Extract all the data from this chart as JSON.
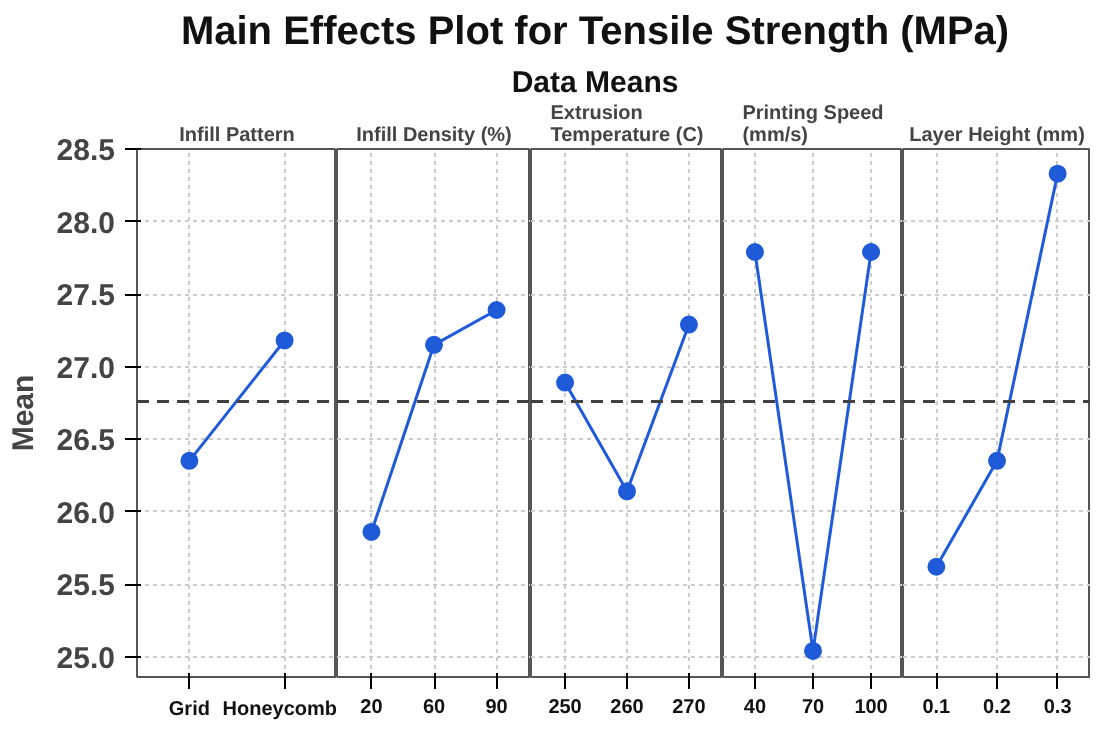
{
  "chart_data": [
    {
      "type": "line",
      "title": "Infill Pattern",
      "ylabel": "Mean",
      "annotations": [
        "Main Effects Plot for Tensile Strength (MPa)",
        "Data Means"
      ],
      "categories": [
        "Grid",
        "Honeycomb"
      ],
      "series": [
        {
          "color": "#1f5ad8",
          "values": [
            26.35,
            27.18
          ]
        }
      ],
      "ylim": [
        24.86,
        28.5
      ],
      "yticks": [
        {
          "value": 25,
          "label": "25.0"
        },
        25.5,
        {
          "value": 26,
          "label": "26.0"
        },
        26.5,
        {
          "value": 27,
          "label": "27.0"
        },
        27.5,
        {
          "value": 28,
          "label": "28.0"
        },
        28.5
      ],
      "ref_lines": [
        {
          "axis": "y",
          "value": 26.76,
          "line_style": "dashed",
          "color": "#404040"
        }
      ],
      "marker": "circle",
      "grid": true
    },
    {
      "type": "line",
      "title": "Infill Density (%)",
      "categories": [
        "20",
        "60",
        "90"
      ],
      "series": [
        {
          "color": "#1f5ad8",
          "values": [
            25.86,
            27.15,
            27.39
          ]
        }
      ],
      "ylim": [
        24.86,
        28.5
      ],
      "yticks": [
        25,
        25.5,
        26,
        26.5,
        27,
        27.5,
        28,
        28.5
      ],
      "ref_lines": [
        {
          "axis": "y",
          "value": 26.76,
          "line_style": "dashed",
          "color": "#404040"
        }
      ],
      "marker": "circle",
      "grid": true,
      "tick_labels": "x"
    },
    {
      "type": "line",
      "title": "Extrusion\nTemperature (C)",
      "categories": [
        "250",
        "260",
        "270"
      ],
      "series": [
        {
          "color": "#1f5ad8",
          "values": [
            26.89,
            26.14,
            27.29
          ]
        }
      ],
      "ylim": [
        24.86,
        28.5
      ],
      "yticks": [
        25,
        25.5,
        26,
        26.5,
        27,
        27.5,
        28,
        28.5
      ],
      "ref_lines": [
        {
          "axis": "y",
          "value": 26.76,
          "line_style": "dashed",
          "color": "#404040"
        }
      ],
      "marker": "circle",
      "grid": true,
      "tick_labels": "x"
    },
    {
      "type": "line",
      "title": "Printing Speed\n(mm/s)",
      "categories": [
        "40",
        "70",
        "100"
      ],
      "series": [
        {
          "color": "#1f5ad8",
          "values": [
            27.79,
            25.04,
            27.79
          ]
        }
      ],
      "ylim": [
        24.86,
        28.5
      ],
      "yticks": [
        25,
        25.5,
        26,
        26.5,
        27,
        27.5,
        28,
        28.5
      ],
      "ref_lines": [
        {
          "axis": "y",
          "value": 26.76,
          "line_style": "dashed",
          "color": "#404040"
        }
      ],
      "marker": "circle",
      "grid": true,
      "tick_labels": "x"
    },
    {
      "type": "line",
      "title": "Layer Height (mm)",
      "categories": [
        "0.1",
        "0.2",
        "0.3"
      ],
      "series": [
        {
          "color": "#1f5ad8",
          "values": [
            25.62,
            26.35,
            28.33
          ]
        }
      ],
      "ylim": [
        24.86,
        28.5
      ],
      "yticks": [
        25,
        25.5,
        26,
        26.5,
        27,
        27.5,
        28,
        28.5
      ],
      "ref_lines": [
        {
          "axis": "y",
          "value": 26.76,
          "line_style": "dashed",
          "color": "#404040"
        }
      ],
      "marker": "circle",
      "grid": true,
      "tick_labels": "x"
    }
  ]
}
